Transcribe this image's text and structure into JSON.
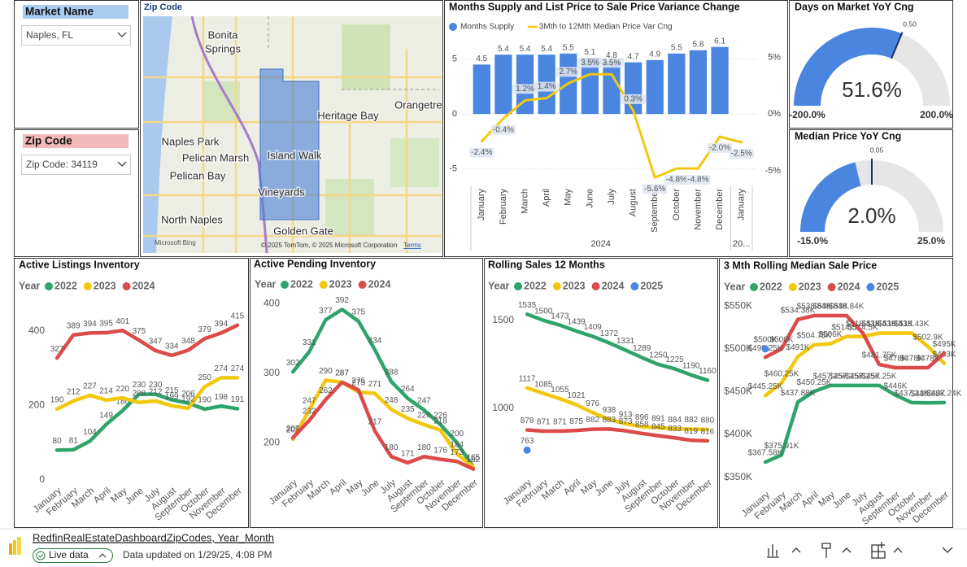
{
  "slicers": [
    {
      "title": "Market Name",
      "value": "Naples, FL"
    },
    {
      "title": "Zip Code",
      "value": "Zip Code: 34119"
    }
  ],
  "map": {
    "title": "Zip Code",
    "places": [
      "Bonita",
      "Springs",
      "Heritage Bay",
      "Orangetree",
      "Naples Park",
      "Pelican Marsh",
      "Island Walk",
      "Pelican Bay",
      "Vineyards",
      "North Naples",
      "Golden Gate"
    ],
    "credit": "Microsoft Bing",
    "copyright": "© 2025 TomTom, © 2025 Microsoft Corporation",
    "terms": "Terms"
  },
  "chart_data": [
    {
      "type": "combo",
      "title": "Months Supply and List Price to Sale Price Variance Change",
      "categories": [
        "January",
        "February",
        "March",
        "April",
        "May",
        "June",
        "July",
        "August",
        "September",
        "October",
        "November",
        "December",
        "January"
      ],
      "groups": [
        {
          "label": "2024",
          "count": 12
        },
        {
          "label": "20...",
          "count": 1
        }
      ],
      "series": [
        {
          "name": "Months Supply",
          "color": "#4a86e0",
          "values": [
            4.5,
            5.4,
            5.4,
            5.4,
            5.5,
            5.1,
            4.8,
            4.7,
            4.9,
            5.5,
            5.8,
            6.1,
            null
          ]
        },
        {
          "name": "3Mth to 12Mth Median Price Var Cng",
          "color": "#f2c80f",
          "axis": "y2",
          "values": [
            -2.4,
            -0.4,
            1.2,
            1.4,
            2.7,
            3.5,
            3.5,
            0.3,
            -5.6,
            -4.8,
            -4.8,
            -2.0,
            -2.5
          ],
          "value_labels": [
            "-2.4%",
            "-0.4%",
            "1.2%",
            "1.4%",
            "2.7%",
            "3.5%",
            "3.5%",
            "0.3%",
            "-5.6%",
            "-4.8%",
            "-4.8%",
            "-2.0%",
            "-2.5%"
          ]
        }
      ],
      "ylim": [
        -6.5,
        6.3
      ],
      "yticks": [
        -5,
        0,
        5
      ],
      "y2lim": [
        -6.3,
        6.1
      ],
      "y2ticks": [
        {
          "value": -5,
          "label": "-5%"
        },
        {
          "value": 0,
          "label": "0%"
        },
        {
          "value": 5,
          "label": "5%"
        }
      ],
      "grid": true
    },
    {
      "type": "gauge",
      "title": "Days on Market YoY Cng",
      "color": "#4a86e0",
      "value": 51.6,
      "value_label": "51.6%",
      "min": -200,
      "min_label": "-200.0%",
      "max": 200,
      "max_label": "200.0%",
      "target": 50,
      "target_label": "0.50"
    },
    {
      "type": "gauge",
      "title": "Median Price YoY Cng",
      "color": "#4a86e0",
      "value": 2.0,
      "value_label": "2.0%",
      "min": -15,
      "min_label": "-15.0%",
      "max": 25,
      "max_label": "25.0%",
      "target": 5,
      "target_label": "0.05"
    },
    {
      "type": "line",
      "title": "Active Listings Inventory",
      "legend_title": "Year",
      "categories": [
        "January",
        "February",
        "March",
        "April",
        "May",
        "June",
        "July",
        "August",
        "September",
        "October",
        "November",
        "December"
      ],
      "series": [
        {
          "name": "2022",
          "color": "#2ea36b",
          "values": [
            80,
            81,
            104,
            149,
            186,
            230,
            230,
            215,
            206,
            190,
            198,
            191
          ]
        },
        {
          "name": "2023",
          "color": "#f2c80f",
          "values": [
            190,
            212,
            227,
            214,
            220,
            208,
            212,
            199,
            192,
            250,
            274,
            274
          ]
        },
        {
          "name": "2024",
          "color": "#dc4a4a",
          "values": [
            327,
            389,
            394,
            395,
            401,
            375,
            347,
            334,
            348,
            379,
            394,
            415
          ]
        }
      ],
      "ylim": [
        0,
        480
      ],
      "yticks": [
        0,
        200,
        400
      ]
    },
    {
      "type": "line",
      "title": "Active Pending Inventory",
      "legend_title": "Year",
      "categories": [
        "January",
        "February",
        "March",
        "April",
        "May",
        "June",
        "July",
        "August",
        "September",
        "October",
        "November",
        "December"
      ],
      "series": [
        {
          "name": "2022",
          "color": "#2ea36b",
          "values": [
            302,
            331,
            377,
            392,
            375,
            334,
            288,
            264,
            247,
            226,
            200,
            165
          ]
        },
        {
          "name": "2023",
          "color": "#f2c80f",
          "values": [
            205,
            247,
            290,
            287,
            273,
            271,
            248,
            235,
            226,
            218,
            184,
            165
          ]
        },
        {
          "name": "2024",
          "color": "#dc4a4a",
          "values": [
            207,
            232,
            262,
            287,
            276,
            217,
            180,
            171,
            180,
            176,
            173,
            162
          ]
        }
      ],
      "ylim": [
        158,
        410
      ],
      "yticks": [
        200,
        300,
        400
      ]
    },
    {
      "type": "line",
      "title": "Rolling Sales 12 Months",
      "legend_title": "Year",
      "categories": [
        "January",
        "February",
        "March",
        "April",
        "May",
        "June",
        "July",
        "August",
        "September",
        "October",
        "November",
        "December"
      ],
      "series": [
        {
          "name": "2022",
          "color": "#2ea36b",
          "values": [
            1535,
            1500,
            1473,
            1439,
            1409,
            1372,
            1331,
            1289,
            1250,
            1225,
            1190,
            1160
          ]
        },
        {
          "name": "2023",
          "color": "#f2c80f",
          "values": [
            1117,
            1085,
            1055,
            1021,
            976,
            938,
            913,
            896,
            891,
            884,
            882,
            880
          ]
        },
        {
          "name": "2024",
          "color": "#dc4a4a",
          "values": [
            878,
            871,
            871,
            875,
            882,
            883,
            873,
            858,
            845,
            833,
            819,
            816
          ]
        },
        {
          "name": "2025",
          "color": "#4a86e0",
          "values": [
            763,
            null,
            null,
            null,
            null,
            null,
            null,
            null,
            null,
            null,
            null,
            null
          ]
        }
      ],
      "ylim": [
        640,
        1610
      ],
      "yticks": [
        1000,
        1500
      ]
    },
    {
      "type": "line",
      "title": "3 Mth Rolling Median Sale Price",
      "legend_title": "Year",
      "categories": [
        "January",
        "February",
        "March",
        "April",
        "May",
        "June",
        "July",
        "August",
        "September",
        "October",
        "November",
        "December"
      ],
      "series": [
        {
          "name": "2022",
          "color": "#2ea36b",
          "values": [
            367580,
            375910,
            437880,
            450250,
            457250,
            457250,
            457250,
            457250,
            446000,
            437240,
            436880,
            437240
          ],
          "value_labels": [
            "$367.58K",
            "$375.91K",
            "$437.88K",
            "$450.25K",
            "$457.25K",
            "$457.25K",
            "$457.25K",
            "$457.25K",
            "$446K",
            "$437.24K",
            "$436.88K",
            "$437.24K"
          ]
        },
        {
          "name": "2023",
          "color": "#f2c80f",
          "values": [
            445250,
            460250,
            491000,
            504750,
            506000,
            514500,
            514500,
            518430,
            518430,
            518430,
            502900,
            483000
          ],
          "value_labels": [
            "$445.25K",
            "$460.25K",
            "$491K",
            "$504.75K",
            "$506K",
            "$514.5K",
            "$514.5K",
            "$518.43K",
            "$518.43K",
            "$518.43K",
            "$502.9K",
            "$483K"
          ]
        },
        {
          "name": "2024",
          "color": "#dc4a4a",
          "values": [
            490250,
            500000,
            534380,
            538840,
            538840,
            538840,
            518430,
            481750,
            478000,
            478000,
            478000,
            495000
          ],
          "value_labels": [
            "$490.25K",
            "$500K",
            "$534.38K",
            "$538.84K",
            "$538.84K",
            "$538.84K",
            "$518.43K",
            "$481.75K",
            "$478K",
            "$478K",
            "$478K",
            "$495K"
          ]
        },
        {
          "name": "2025",
          "color": "#4a86e0",
          "values": [
            500000,
            null,
            null,
            null,
            null,
            null,
            null,
            null,
            null,
            null,
            null,
            null
          ],
          "value_labels": [
            "$500K",
            null,
            null,
            null,
            null,
            null,
            null,
            null,
            null,
            null,
            null,
            null
          ]
        }
      ],
      "ylim": [
        342000,
        556000
      ],
      "yticks": [
        {
          "value": 350000,
          "label": "$350K"
        },
        {
          "value": 400000,
          "label": "$400K"
        },
        {
          "value": 450000,
          "label": "$450K"
        },
        {
          "value": 500000,
          "label": "$500K"
        },
        {
          "value": 550000,
          "label": "$550K"
        }
      ]
    }
  ],
  "footer": {
    "dataset": "RedfinRealEstateDashboardZipCodes, Year_Month",
    "status": "Live data",
    "updated": "Data updated on 1/29/25, 4:08 PM"
  }
}
